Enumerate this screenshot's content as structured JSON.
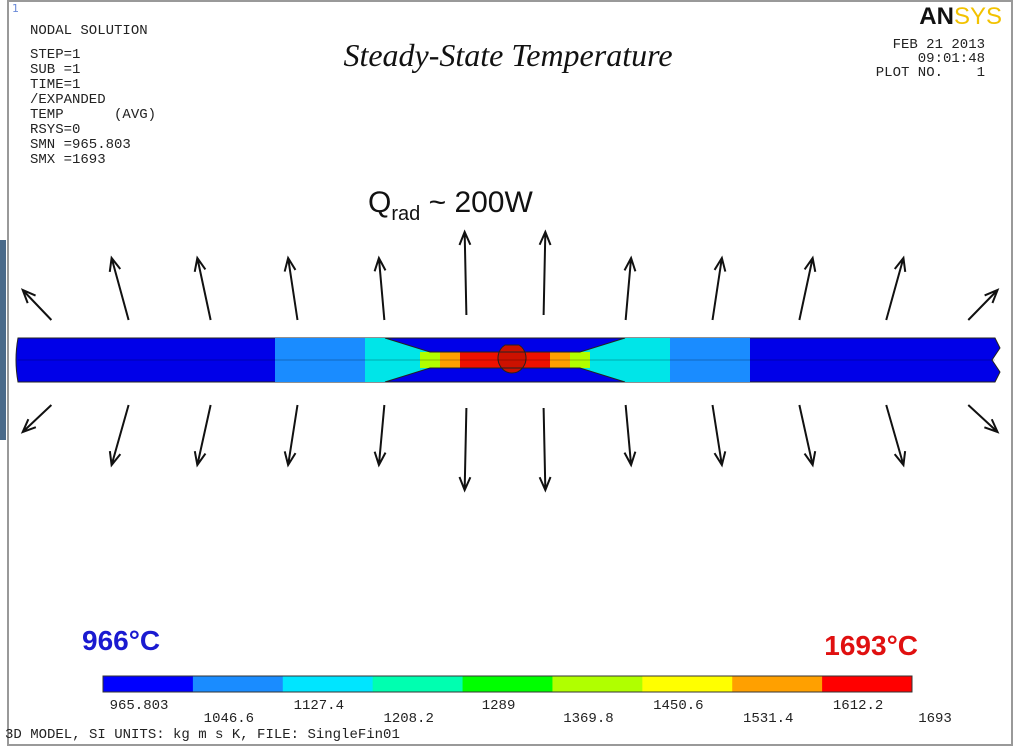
{
  "window_number": "1",
  "info": [
    "NODAL SOLUTION",
    "STEP=1",
    "SUB =1",
    "TIME=1",
    "/EXPANDED",
    "TEMP      (AVG)",
    "RSYS=0",
    "SMN =965.803",
    "SMX =1693"
  ],
  "title": "Steady-State Temperature",
  "logo": {
    "dark": "AN",
    "light": "SYS"
  },
  "stamp": [
    "FEB 21 2013",
    "09:01:48",
    "PLOT NO.    1"
  ],
  "annotation": {
    "symbol": "Q",
    "subscript": "rad",
    "text": " ~ 200W"
  },
  "min_label": "966°C",
  "max_label": "1693°C",
  "legend": {
    "colors": [
      "#0000ff",
      "#1a8cff",
      "#00e5ff",
      "#00ffb0",
      "#00ff00",
      "#b0ff00",
      "#ffff00",
      "#ffa000",
      "#ff0000"
    ],
    "labels": [
      "965.803",
      "1046.6",
      "1127.4",
      "1208.2",
      "1289",
      "1369.8",
      "1450.6",
      "1531.4",
      "1612.2",
      "1693"
    ]
  },
  "footer": "3D MODEL, SI UNITS: kg m s K, FILE: SingleFin01"
}
